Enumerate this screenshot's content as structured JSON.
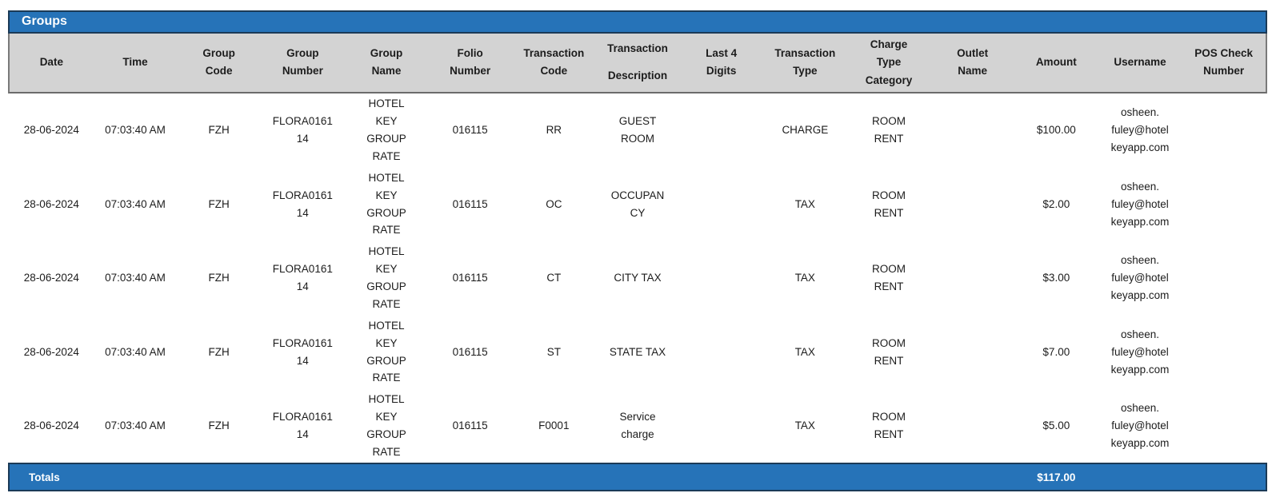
{
  "title_bar": {
    "label": "Groups"
  },
  "table": {
    "columns": [
      "Date",
      "Time",
      "Group\nCode",
      "Group\nNumber",
      "Group\nName",
      "Folio\nNumber",
      "Transaction\nCode",
      "Transaction\nDescription",
      "Last 4\nDigits",
      "Transaction\nType",
      "Charge\nType\nCategory",
      "Outlet\nName",
      "Amount",
      "Username",
      "POS Check\nNumber"
    ],
    "rows": [
      {
        "date": "28-06-2024",
        "time": "07:03:40 AM",
        "group_code": "FZH",
        "group_number": "FLORA0161\n14",
        "group_name": "HOTEL\nKEY\nGROUP\nRATE",
        "folio_number": "016115",
        "transaction_code": "RR",
        "transaction_description": "GUEST\nROOM",
        "last4_digits": "",
        "transaction_type": "CHARGE",
        "charge_type_category": "ROOM\nRENT",
        "outlet_name": "",
        "amount": "$100.00",
        "username": "osheen.\nfuley@hotel\nkeyapp.com",
        "pos_check_number": ""
      },
      {
        "date": "28-06-2024",
        "time": "07:03:40 AM",
        "group_code": "FZH",
        "group_number": "FLORA0161\n14",
        "group_name": "HOTEL\nKEY\nGROUP\nRATE",
        "folio_number": "016115",
        "transaction_code": "OC",
        "transaction_description": "OCCUPAN\nCY",
        "last4_digits": "",
        "transaction_type": "TAX",
        "charge_type_category": "ROOM\nRENT",
        "outlet_name": "",
        "amount": "$2.00",
        "username": "osheen.\nfuley@hotel\nkeyapp.com",
        "pos_check_number": ""
      },
      {
        "date": "28-06-2024",
        "time": "07:03:40 AM",
        "group_code": "FZH",
        "group_number": "FLORA0161\n14",
        "group_name": "HOTEL\nKEY\nGROUP\nRATE",
        "folio_number": "016115",
        "transaction_code": "CT",
        "transaction_description": "CITY TAX",
        "last4_digits": "",
        "transaction_type": "TAX",
        "charge_type_category": "ROOM\nRENT",
        "outlet_name": "",
        "amount": "$3.00",
        "username": "osheen.\nfuley@hotel\nkeyapp.com",
        "pos_check_number": ""
      },
      {
        "date": "28-06-2024",
        "time": "07:03:40 AM",
        "group_code": "FZH",
        "group_number": "FLORA0161\n14",
        "group_name": "HOTEL\nKEY\nGROUP\nRATE",
        "folio_number": "016115",
        "transaction_code": "ST",
        "transaction_description": "STATE TAX",
        "last4_digits": "",
        "transaction_type": "TAX",
        "charge_type_category": "ROOM\nRENT",
        "outlet_name": "",
        "amount": "$7.00",
        "username": "osheen.\nfuley@hotel\nkeyapp.com",
        "pos_check_number": ""
      },
      {
        "date": "28-06-2024",
        "time": "07:03:40 AM",
        "group_code": "FZH",
        "group_number": "FLORA0161\n14",
        "group_name": "HOTEL\nKEY\nGROUP\nRATE",
        "folio_number": "016115",
        "transaction_code": "F0001",
        "transaction_description": "Service\ncharge",
        "last4_digits": "",
        "transaction_type": "TAX",
        "charge_type_category": "ROOM\nRENT",
        "outlet_name": "",
        "amount": "$5.00",
        "username": "osheen.\nfuley@hotel\nkeyapp.com",
        "pos_check_number": ""
      }
    ],
    "totals": {
      "label": "Totals",
      "amount": "$117.00"
    }
  },
  "colors": {
    "accent_blue": "#2673B8",
    "border_navy": "#1B3A57",
    "header_gray": "#D3D3D3",
    "header_border_gray": "#7A7A7A"
  }
}
